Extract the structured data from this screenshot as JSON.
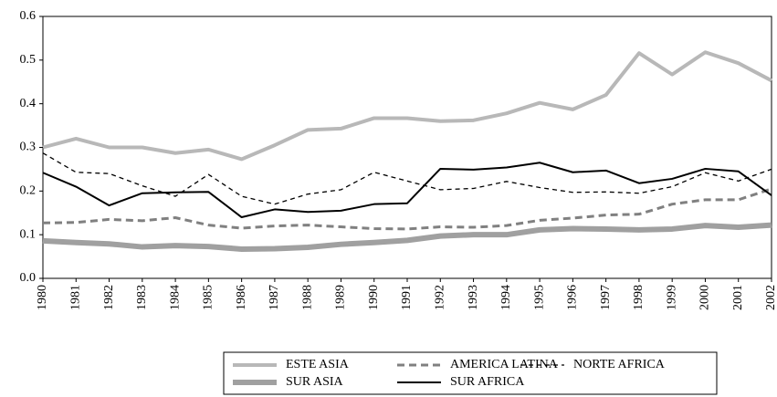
{
  "chart_data": {
    "type": "line",
    "categories": [
      "1980",
      "1981",
      "1982",
      "1983",
      "1984",
      "1985",
      "1986",
      "1987",
      "1988",
      "1989",
      "1990",
      "1991",
      "1992",
      "1993",
      "1994",
      "1995",
      "1996",
      "1997",
      "1998",
      "1999",
      "2000",
      "2001",
      "2002"
    ],
    "series": [
      {
        "name": "ESTE ASIA",
        "color": "#b8b8b8",
        "dash": "solid",
        "values": [
          0.3,
          0.32,
          0.3,
          0.3,
          0.287,
          0.295,
          0.273,
          0.305,
          0.34,
          0.343,
          0.367,
          0.367,
          0.36,
          0.362,
          0.378,
          0.402,
          0.387,
          0.42,
          0.516,
          0.467,
          0.518,
          0.493,
          0.453
        ]
      },
      {
        "name": "AMERICA LATINA",
        "color": "#808080",
        "dash": "dashed",
        "values": [
          0.127,
          0.128,
          0.135,
          0.132,
          0.139,
          0.122,
          0.115,
          0.12,
          0.122,
          0.118,
          0.114,
          0.113,
          0.118,
          0.117,
          0.121,
          0.133,
          0.138,
          0.145,
          0.147,
          0.17,
          0.18,
          0.18,
          0.205
        ]
      },
      {
        "name": "NORTE AFRICA",
        "color": "#000000",
        "dash": "dashed",
        "values": [
          0.287,
          0.243,
          0.24,
          0.212,
          0.188,
          0.238,
          0.188,
          0.17,
          0.193,
          0.203,
          0.243,
          0.223,
          0.203,
          0.206,
          0.222,
          0.208,
          0.197,
          0.198,
          0.195,
          0.21,
          0.242,
          0.223,
          0.25
        ]
      },
      {
        "name": "SUR ASIA",
        "color": "#a0a0a0",
        "dash": "solid",
        "values": [
          0.086,
          0.082,
          0.079,
          0.072,
          0.075,
          0.073,
          0.067,
          0.068,
          0.071,
          0.078,
          0.082,
          0.087,
          0.097,
          0.1,
          0.1,
          0.111,
          0.114,
          0.113,
          0.111,
          0.113,
          0.121,
          0.117,
          0.122
        ]
      },
      {
        "name": "SUR AFRICA",
        "color": "#000000",
        "dash": "solid",
        "values": [
          0.242,
          0.21,
          0.167,
          0.195,
          0.197,
          0.198,
          0.14,
          0.158,
          0.152,
          0.155,
          0.17,
          0.172,
          0.251,
          0.249,
          0.254,
          0.265,
          0.243,
          0.247,
          0.218,
          0.228,
          0.251,
          0.245,
          0.19
        ]
      }
    ],
    "ylim": [
      0,
      0.6
    ],
    "yticks": [
      {
        "value": 0,
        "label": "0.0"
      },
      0.1,
      0.2,
      0.3,
      0.4,
      0.5,
      0.6
    ],
    "grid": false,
    "legend": "bottom"
  }
}
